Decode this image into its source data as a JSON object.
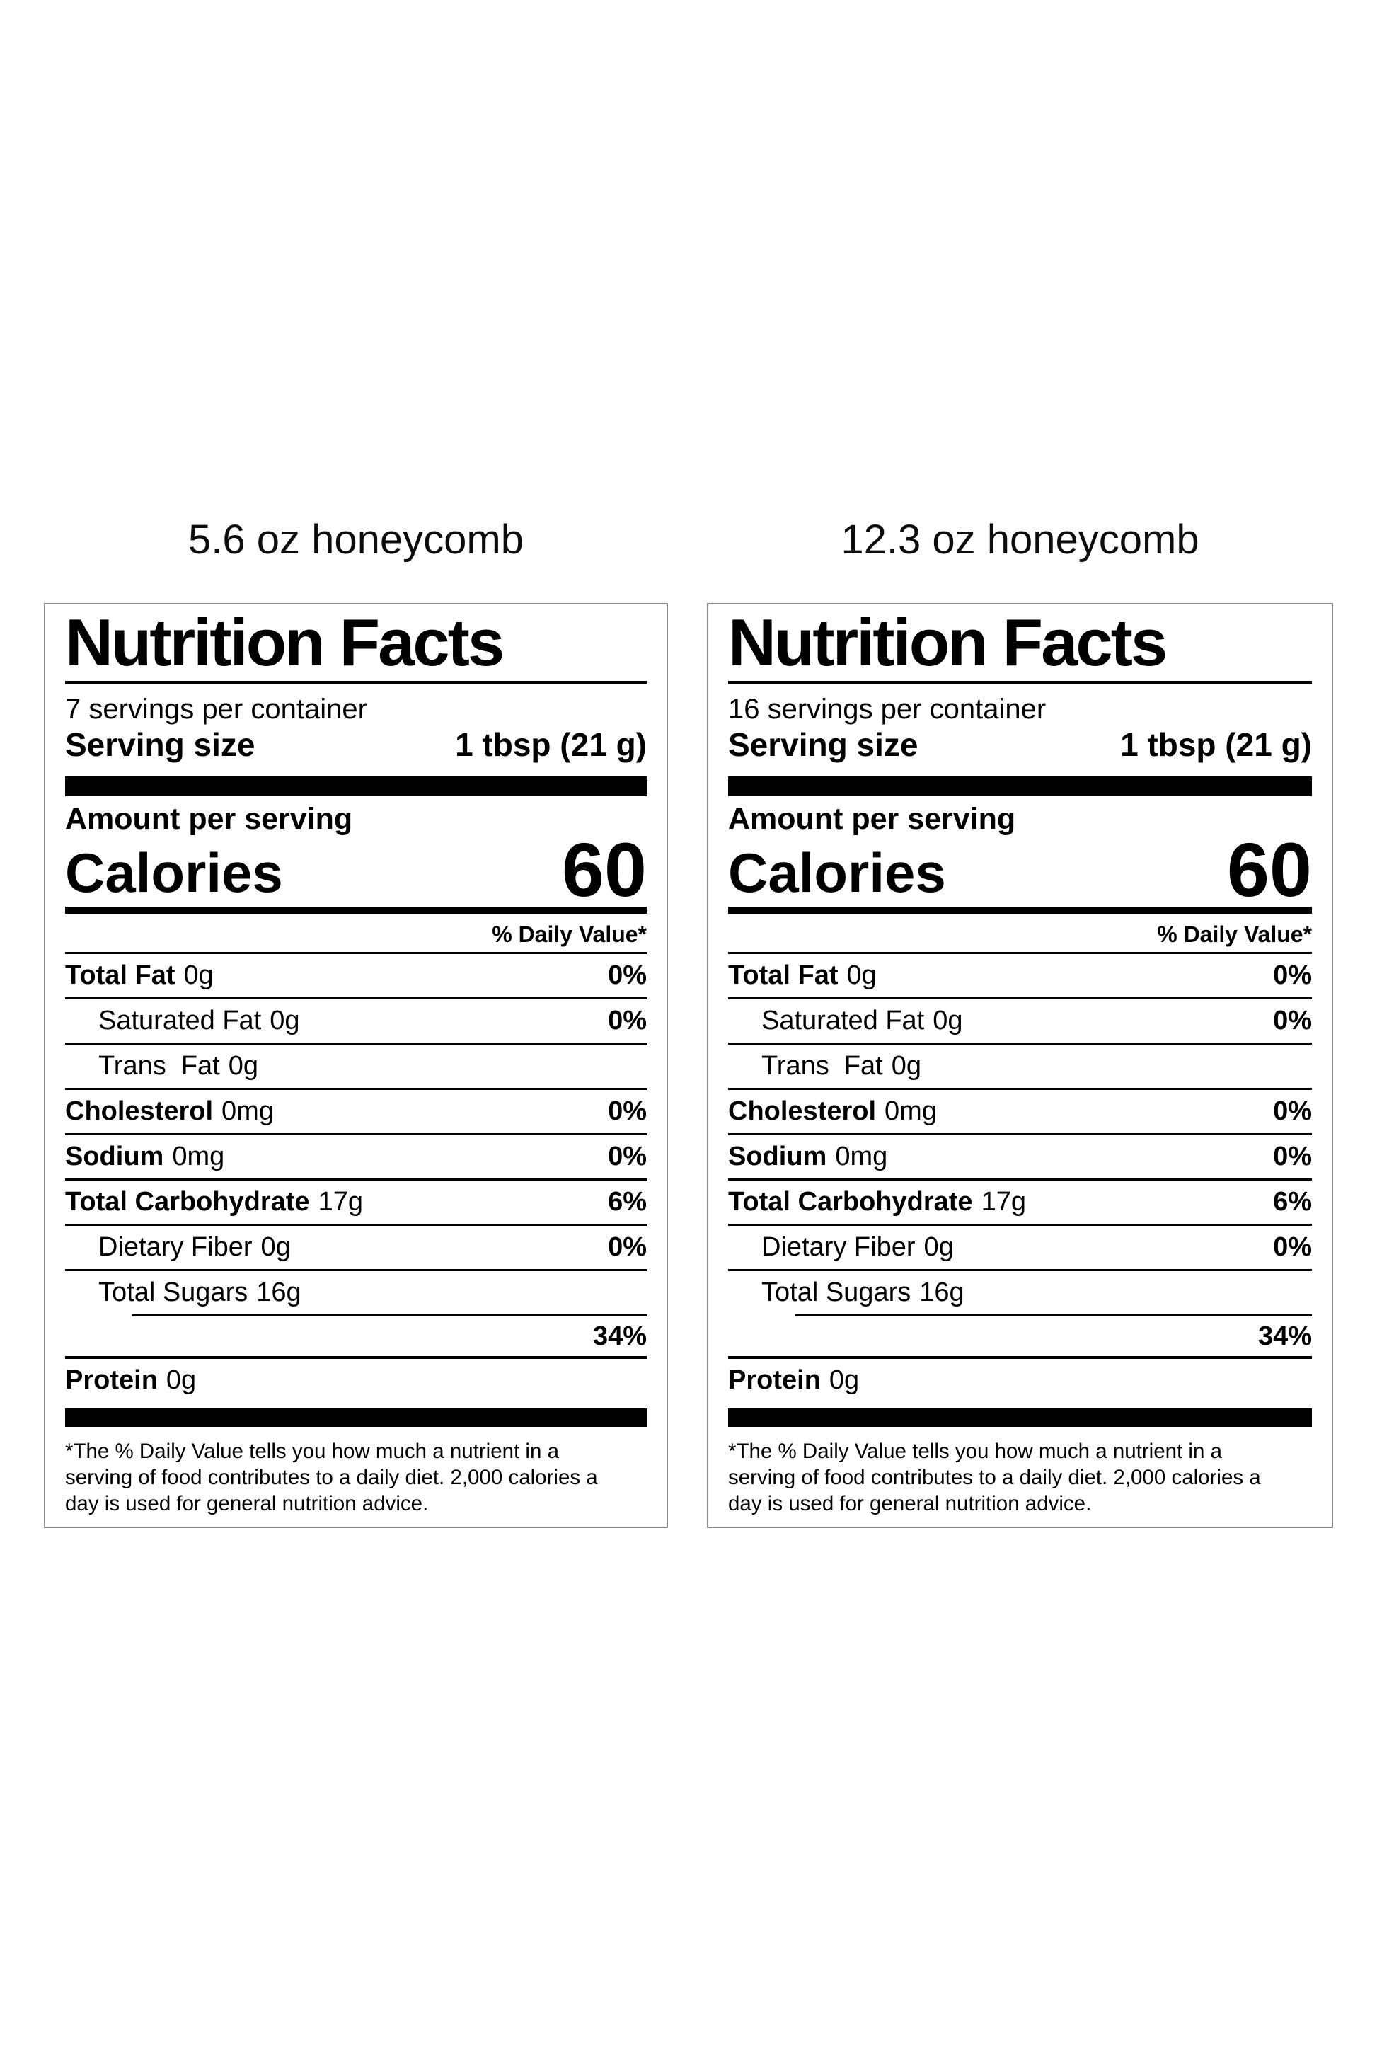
{
  "page": {
    "background": "#ffffff",
    "text_color": "#000000",
    "box_border_color": "#8a8a8a"
  },
  "products": [
    {
      "title": "5.6 oz honeycomb",
      "label": {
        "heading": "Nutrition Facts",
        "servings_per_container": "7 servings per container",
        "serving_size_label": "Serving size",
        "serving_size_value": "1 tbsp (21 g)",
        "amount_per_serving": "Amount per serving",
        "calories_label": "Calories",
        "calories_value": "60",
        "daily_value_header": "% Daily Value*",
        "rows": [
          {
            "label": "Total Fat",
            "value": "0g",
            "dv": "0%"
          },
          {
            "label": "Saturated Fat",
            "value": "0g",
            "dv": "0%"
          },
          {
            "label": "Trans  Fat",
            "value": "0g",
            "dv": ""
          },
          {
            "label": "Cholesterol",
            "value": "0mg",
            "dv": "0%"
          },
          {
            "label": "Sodium",
            "value": "0mg",
            "dv": "0%"
          },
          {
            "label": "Total Carbohydrate",
            "value": "17g",
            "dv": "6%"
          },
          {
            "label": "Dietary Fiber",
            "value": "0g",
            "dv": "0%"
          },
          {
            "label": "Total Sugars",
            "value": "16g",
            "dv": ""
          }
        ],
        "added_sugars_dv": "34%",
        "protein_label": "Protein",
        "protein_value": "0g",
        "footnote_lines": [
          "*The % Daily Value tells you how much a nutrient in a",
          "serving of food contributes to a daily diet. 2,000 calories a",
          "day is used for general nutrition advice."
        ]
      }
    },
    {
      "title": "12.3 oz honeycomb",
      "label": {
        "heading": "Nutrition Facts",
        "servings_per_container": "16 servings per container",
        "serving_size_label": "Serving size",
        "serving_size_value": "1 tbsp (21 g)",
        "amount_per_serving": "Amount per serving",
        "calories_label": "Calories",
        "calories_value": "60",
        "daily_value_header": "% Daily Value*",
        "rows": [
          {
            "label": "Total Fat",
            "value": "0g",
            "dv": "0%"
          },
          {
            "label": "Saturated Fat",
            "value": "0g",
            "dv": "0%"
          },
          {
            "label": "Trans  Fat",
            "value": "0g",
            "dv": ""
          },
          {
            "label": "Cholesterol",
            "value": "0mg",
            "dv": "0%"
          },
          {
            "label": "Sodium",
            "value": "0mg",
            "dv": "0%"
          },
          {
            "label": "Total Carbohydrate",
            "value": "17g",
            "dv": "6%"
          },
          {
            "label": "Dietary Fiber",
            "value": "0g",
            "dv": "0%"
          },
          {
            "label": "Total Sugars",
            "value": "16g",
            "dv": ""
          }
        ],
        "added_sugars_dv": "34%",
        "protein_label": "Protein",
        "protein_value": "0g",
        "footnote_lines": [
          "*The % Daily Value tells you how much a nutrient in a",
          "serving of food contributes to a daily diet. 2,000 calories a",
          "day is used for general nutrition advice."
        ]
      }
    }
  ]
}
